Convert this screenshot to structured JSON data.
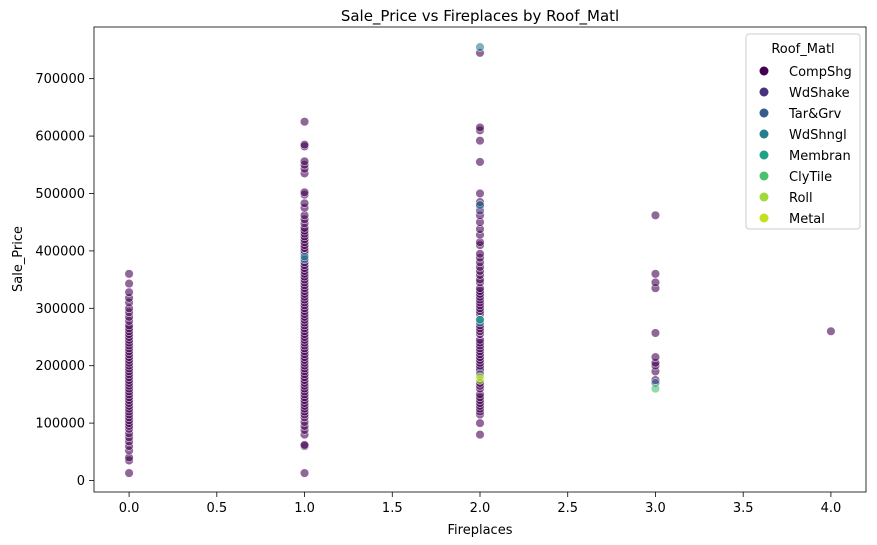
{
  "chart_data": {
    "type": "scatter",
    "title": "Sale_Price vs Fireplaces by Roof_Matl",
    "xlabel": "Fireplaces",
    "ylabel": "Sale_Price",
    "xlim": [
      -0.2,
      4.2
    ],
    "ylim": [
      -20000,
      790000
    ],
    "xticks": [
      0.0,
      0.5,
      1.0,
      1.5,
      2.0,
      2.5,
      3.0,
      3.5,
      4.0
    ],
    "xtick_labels": [
      "0.0",
      "0.5",
      "1.0",
      "1.5",
      "2.0",
      "2.5",
      "3.0",
      "3.5",
      "4.0"
    ],
    "yticks": [
      0,
      100000,
      200000,
      300000,
      400000,
      500000,
      600000,
      700000
    ],
    "ytick_labels": [
      "0",
      "100000",
      "200000",
      "300000",
      "400000",
      "500000",
      "600000",
      "700000"
    ],
    "grid": false,
    "legend": {
      "title": "Roof_Matl",
      "placement": "top-right"
    },
    "series": [
      {
        "name": "CompShg",
        "color": "#440154",
        "points": [
          [
            0,
            13000
          ],
          [
            0,
            35000
          ],
          [
            0,
            40000
          ],
          [
            0,
            52000
          ],
          [
            0,
            60000
          ],
          [
            0,
            68000
          ],
          [
            0,
            75000
          ],
          [
            0,
            82000
          ],
          [
            0,
            90000
          ],
          [
            0,
            95000
          ],
          [
            0,
            100000
          ],
          [
            0,
            105000
          ],
          [
            0,
            110000
          ],
          [
            0,
            115000
          ],
          [
            0,
            120000
          ],
          [
            0,
            125000
          ],
          [
            0,
            130000
          ],
          [
            0,
            135000
          ],
          [
            0,
            140000
          ],
          [
            0,
            145000
          ],
          [
            0,
            150000
          ],
          [
            0,
            155000
          ],
          [
            0,
            160000
          ],
          [
            0,
            165000
          ],
          [
            0,
            170000
          ],
          [
            0,
            175000
          ],
          [
            0,
            180000
          ],
          [
            0,
            185000
          ],
          [
            0,
            190000
          ],
          [
            0,
            195000
          ],
          [
            0,
            200000
          ],
          [
            0,
            205000
          ],
          [
            0,
            210000
          ],
          [
            0,
            215000
          ],
          [
            0,
            220000
          ],
          [
            0,
            225000
          ],
          [
            0,
            230000
          ],
          [
            0,
            235000
          ],
          [
            0,
            240000
          ],
          [
            0,
            245000
          ],
          [
            0,
            250000
          ],
          [
            0,
            255000
          ],
          [
            0,
            260000
          ],
          [
            0,
            265000
          ],
          [
            0,
            270000
          ],
          [
            0,
            278000
          ],
          [
            0,
            285000
          ],
          [
            0,
            293000
          ],
          [
            0,
            300000
          ],
          [
            0,
            310000
          ],
          [
            0,
            318000
          ],
          [
            0,
            328000
          ],
          [
            0,
            343000
          ],
          [
            0,
            360000
          ],
          [
            1,
            13000
          ],
          [
            1,
            60000
          ],
          [
            1,
            62000
          ],
          [
            1,
            80000
          ],
          [
            1,
            88000
          ],
          [
            1,
            95000
          ],
          [
            1,
            102000
          ],
          [
            1,
            110000
          ],
          [
            1,
            115000
          ],
          [
            1,
            120000
          ],
          [
            1,
            125000
          ],
          [
            1,
            130000
          ],
          [
            1,
            135000
          ],
          [
            1,
            140000
          ],
          [
            1,
            145000
          ],
          [
            1,
            150000
          ],
          [
            1,
            155000
          ],
          [
            1,
            160000
          ],
          [
            1,
            165000
          ],
          [
            1,
            170000
          ],
          [
            1,
            175000
          ],
          [
            1,
            180000
          ],
          [
            1,
            185000
          ],
          [
            1,
            190000
          ],
          [
            1,
            195000
          ],
          [
            1,
            200000
          ],
          [
            1,
            205000
          ],
          [
            1,
            210000
          ],
          [
            1,
            215000
          ],
          [
            1,
            220000
          ],
          [
            1,
            225000
          ],
          [
            1,
            230000
          ],
          [
            1,
            235000
          ],
          [
            1,
            240000
          ],
          [
            1,
            245000
          ],
          [
            1,
            250000
          ],
          [
            1,
            255000
          ],
          [
            1,
            260000
          ],
          [
            1,
            265000
          ],
          [
            1,
            270000
          ],
          [
            1,
            275000
          ],
          [
            1,
            280000
          ],
          [
            1,
            285000
          ],
          [
            1,
            290000
          ],
          [
            1,
            295000
          ],
          [
            1,
            300000
          ],
          [
            1,
            305000
          ],
          [
            1,
            310000
          ],
          [
            1,
            315000
          ],
          [
            1,
            320000
          ],
          [
            1,
            325000
          ],
          [
            1,
            330000
          ],
          [
            1,
            335000
          ],
          [
            1,
            340000
          ],
          [
            1,
            345000
          ],
          [
            1,
            350000
          ],
          [
            1,
            355000
          ],
          [
            1,
            360000
          ],
          [
            1,
            365000
          ],
          [
            1,
            370000
          ],
          [
            1,
            375000
          ],
          [
            1,
            380000
          ],
          [
            1,
            395000
          ],
          [
            1,
            400000
          ],
          [
            1,
            405000
          ],
          [
            1,
            410000
          ],
          [
            1,
            415000
          ],
          [
            1,
            420000
          ],
          [
            1,
            425000
          ],
          [
            1,
            430000
          ],
          [
            1,
            435000
          ],
          [
            1,
            440000
          ],
          [
            1,
            448000
          ],
          [
            1,
            455000
          ],
          [
            1,
            462000
          ],
          [
            1,
            475000
          ],
          [
            1,
            483000
          ],
          [
            1,
            498000
          ],
          [
            1,
            502000
          ],
          [
            1,
            535000
          ],
          [
            1,
            543000
          ],
          [
            1,
            550000
          ],
          [
            1,
            556000
          ],
          [
            1,
            582000
          ],
          [
            1,
            585000
          ],
          [
            1,
            625000
          ],
          [
            2,
            80000
          ],
          [
            2,
            100000
          ],
          [
            2,
            115000
          ],
          [
            2,
            120000
          ],
          [
            2,
            125000
          ],
          [
            2,
            130000
          ],
          [
            2,
            135000
          ],
          [
            2,
            140000
          ],
          [
            2,
            145000
          ],
          [
            2,
            150000
          ],
          [
            2,
            160000
          ],
          [
            2,
            165000
          ],
          [
            2,
            170000
          ],
          [
            2,
            190000
          ],
          [
            2,
            195000
          ],
          [
            2,
            200000
          ],
          [
            2,
            205000
          ],
          [
            2,
            210000
          ],
          [
            2,
            215000
          ],
          [
            2,
            220000
          ],
          [
            2,
            225000
          ],
          [
            2,
            230000
          ],
          [
            2,
            235000
          ],
          [
            2,
            240000
          ],
          [
            2,
            245000
          ],
          [
            2,
            255000
          ],
          [
            2,
            260000
          ],
          [
            2,
            265000
          ],
          [
            2,
            270000
          ],
          [
            2,
            290000
          ],
          [
            2,
            295000
          ],
          [
            2,
            300000
          ],
          [
            2,
            305000
          ],
          [
            2,
            310000
          ],
          [
            2,
            315000
          ],
          [
            2,
            320000
          ],
          [
            2,
            325000
          ],
          [
            2,
            330000
          ],
          [
            2,
            335000
          ],
          [
            2,
            345000
          ],
          [
            2,
            350000
          ],
          [
            2,
            358000
          ],
          [
            2,
            365000
          ],
          [
            2,
            372000
          ],
          [
            2,
            380000
          ],
          [
            2,
            388000
          ],
          [
            2,
            395000
          ],
          [
            2,
            410000
          ],
          [
            2,
            415000
          ],
          [
            2,
            428000
          ],
          [
            2,
            438000
          ],
          [
            2,
            450000
          ],
          [
            2,
            462000
          ],
          [
            2,
            478000
          ],
          [
            2,
            485000
          ],
          [
            2,
            500000
          ],
          [
            2,
            555000
          ],
          [
            2,
            592000
          ],
          [
            2,
            610000
          ],
          [
            2,
            615000
          ],
          [
            2,
            745000
          ],
          [
            3,
            175000
          ],
          [
            3,
            190000
          ],
          [
            3,
            200000
          ],
          [
            3,
            205000
          ],
          [
            3,
            215000
          ],
          [
            3,
            257000
          ],
          [
            3,
            335000
          ],
          [
            3,
            345000
          ],
          [
            3,
            360000
          ],
          [
            3,
            462000
          ],
          [
            4,
            260000
          ]
        ]
      },
      {
        "name": "WdShake",
        "color": "#46327e",
        "points": [
          [
            1,
            387000
          ],
          [
            2,
            470000
          ],
          [
            2,
            280000
          ]
        ]
      },
      {
        "name": "Tar&Grv",
        "color": "#365c8d",
        "points": [
          [
            1,
            385000
          ],
          [
            2,
            275000
          ],
          [
            2,
            185000
          ],
          [
            3,
            170000
          ]
        ]
      },
      {
        "name": "WdShngl",
        "color": "#277f8e",
        "points": [
          [
            2,
            755000
          ],
          [
            2,
            480000
          ],
          [
            2,
            280000
          ],
          [
            1,
            390000
          ]
        ]
      },
      {
        "name": "Membran",
        "color": "#1fa187",
        "points": [
          [
            2,
            280000
          ]
        ]
      },
      {
        "name": "ClyTile",
        "color": "#4ac16d",
        "points": [
          [
            3,
            160000
          ]
        ]
      },
      {
        "name": "Roll",
        "color": "#a0da39",
        "points": [
          [
            2,
            175000
          ]
        ]
      },
      {
        "name": "Metal",
        "color": "#c5e021",
        "points": [
          [
            2,
            180000
          ]
        ]
      }
    ]
  }
}
